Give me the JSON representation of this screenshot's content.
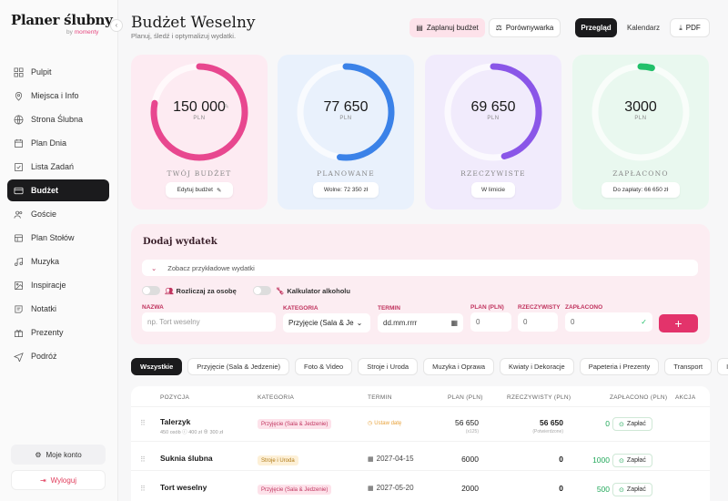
{
  "sidebar": {
    "logo": "Planer ślubny",
    "by_prefix": "by",
    "by_brand": "momenty",
    "items": [
      {
        "label": "Pulpit",
        "icon": "grid-icon"
      },
      {
        "label": "Miejsca i Info",
        "icon": "map-pin-icon"
      },
      {
        "label": "Strona Ślubna",
        "icon": "globe-icon"
      },
      {
        "label": "Plan Dnia",
        "icon": "calendar-clock-icon"
      },
      {
        "label": "Lista Zadań",
        "icon": "checkbox-icon"
      },
      {
        "label": "Budżet",
        "icon": "wallet-icon",
        "active": true
      },
      {
        "label": "Goście",
        "icon": "users-icon"
      },
      {
        "label": "Plan Stołów",
        "icon": "table-icon"
      },
      {
        "label": "Muzyka",
        "icon": "music-icon"
      },
      {
        "label": "Inspiracje",
        "icon": "image-icon"
      },
      {
        "label": "Notatki",
        "icon": "note-icon"
      },
      {
        "label": "Prezenty",
        "icon": "gift-icon"
      },
      {
        "label": "Podróż",
        "icon": "plane-icon"
      }
    ],
    "account_label": "Moje konto",
    "logout_label": "Wyloguj"
  },
  "header": {
    "title": "Budżet Weselny",
    "subtitle": "Planuj, śledź i optymalizuj wydatki.",
    "plan_btn": "Zaplanuj budżet",
    "compare_btn": "Porównywarka",
    "view_overview": "Przegląd",
    "view_calendar": "Kalendarz",
    "pdf_btn": "PDF"
  },
  "cards": [
    {
      "value": "150 000",
      "unit": "PLN",
      "label": "TWÓJ BUDŻET",
      "pill": "Edytuj budżet",
      "progress": 0.78,
      "color": "#e8478f",
      "bg": "#fdebf2"
    },
    {
      "value": "77 650",
      "unit": "PLN",
      "label": "PLANOWANE",
      "pill": "Wolne: 72 350 zł",
      "progress": 0.52,
      "color": "#3b82e8",
      "bg": "#e9f1fc"
    },
    {
      "value": "69 650",
      "unit": "PLN",
      "label": "RZECZYWISTE",
      "pill": "W limicie",
      "progress": 0.46,
      "color": "#8a56e8",
      "bg": "#f1ebfc"
    },
    {
      "value": "3000",
      "unit": "PLN",
      "label": "ZAPŁACONO",
      "pill": "Do zapłaty: 66 650 zł",
      "progress": 0.04,
      "color": "#22c06a",
      "bg": "#e9f8ef"
    }
  ],
  "add_expense": {
    "title": "Dodaj wydatek",
    "examples": "Zobacz przykładowe wydatki",
    "per_person": "Rozliczaj za osobę",
    "alcohol": "Kalkulator alkoholu",
    "name_label": "NAZWA",
    "name_placeholder": "np. Tort weselny",
    "category_label": "KATEGORIA",
    "category_value": "Przyjęcie (Sala & Je",
    "date_label": "TERMIN",
    "date_placeholder": "dd.mm.rrrr",
    "plan_label": "PLAN (PLN)",
    "plan_value": "0",
    "actual_label": "RZECZYWISTY",
    "actual_value": "0",
    "paid_label": "ZAPŁACONO",
    "paid_value": "0",
    "add_btn": "+"
  },
  "tabs": [
    "Wszystkie",
    "Przyjęcie (Sala & Jedzenie)",
    "Foto & Video",
    "Stroje i Uroda",
    "Muzyka i Oprawa",
    "Kwiaty i Dekoracje",
    "Papeteria i Prezenty",
    "Transport",
    "Inne"
  ],
  "table": {
    "headers": [
      "POZYCJA",
      "KATEGORIA",
      "TERMIN",
      "PLAN (PLN)",
      "RZECZYWISTY (PLN)",
      "ZAPŁACONO (PLN)",
      "AKCJA"
    ],
    "rows": [
      {
        "name": "Talerzyk",
        "sub1": "450 osób",
        "sub2": "400 zł",
        "sub3": "300 zł",
        "category": "Przyjęcie (Sala & Jedzenie)",
        "cat_color": "#fde2ea",
        "cat_text": "#c0335e",
        "date": "Ustaw datę",
        "date_set": false,
        "plan": "56 650",
        "plan_sub": "(x125)",
        "actual": "56 650",
        "actual_sub": "(Potwierdzone)",
        "paid": "0",
        "pay_btn": "Zapłać"
      },
      {
        "name": "Suknia ślubna",
        "category": "Stroje i Uroda",
        "cat_color": "#fdf0d7",
        "cat_text": "#b07a15",
        "date": "2027-04-15",
        "date_set": true,
        "plan": "6000",
        "actual": "0",
        "paid": "1000",
        "pay_btn": "Zapłać"
      },
      {
        "name": "Tort weselny",
        "category": "Przyjęcie (Sala & Jedzenie)",
        "cat_color": "#fde2ea",
        "cat_text": "#c0335e",
        "date": "2027-05-20",
        "date_set": true,
        "plan": "2000",
        "actual": "0",
        "paid": "500",
        "pay_btn": "Zapłać"
      }
    ]
  }
}
